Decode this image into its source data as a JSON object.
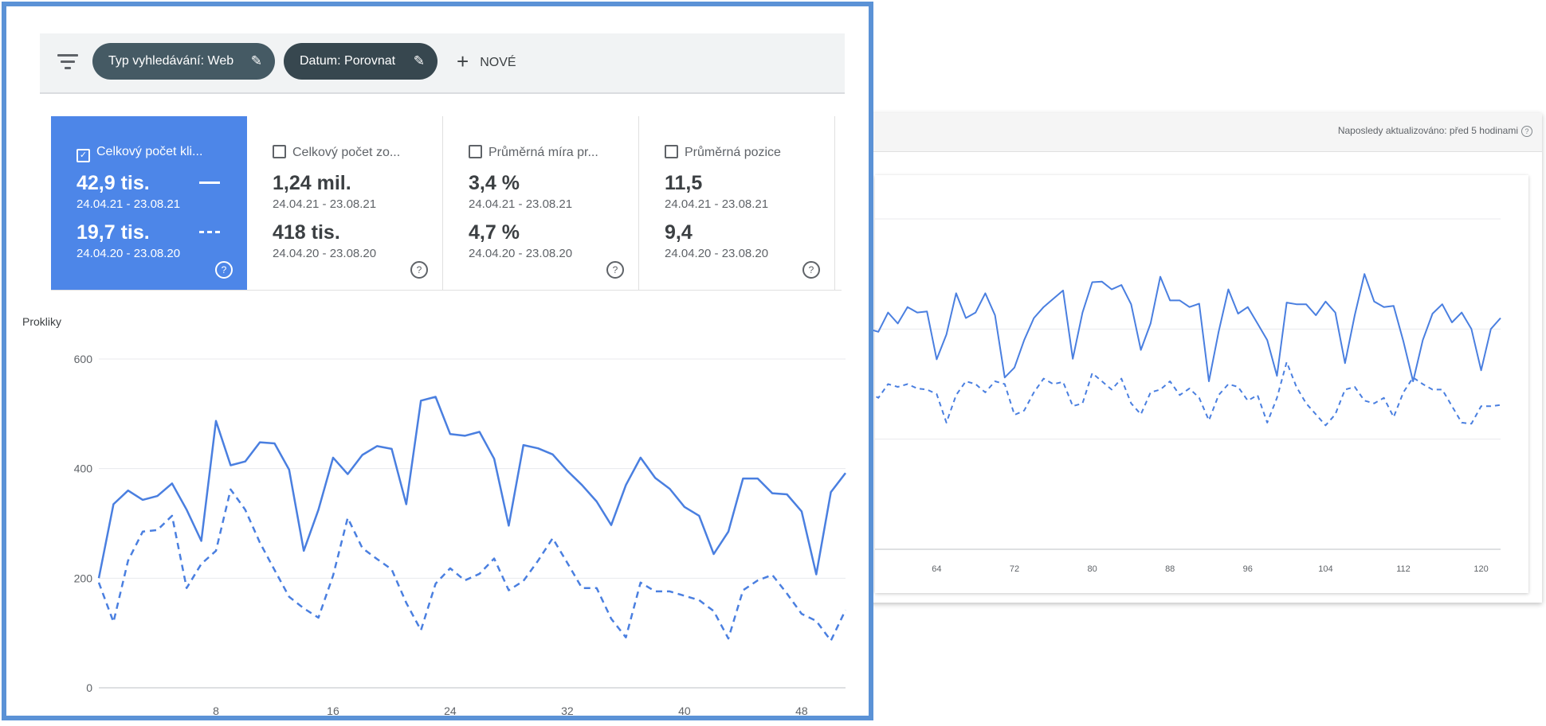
{
  "background_panel": {
    "last_updated": "Naposledy aktualizováno: před 5 hodinami",
    "help_glyph": "?"
  },
  "toolbar": {
    "filter_icon": "filter-list-icon",
    "chips": [
      {
        "label": "Typ vyhledávání: Web",
        "icon": "pencil-icon"
      },
      {
        "label": "Datum: Porovnat",
        "icon": "pencil-icon"
      }
    ],
    "add_label": "NOVÉ"
  },
  "metrics": [
    {
      "title": "Celkový počet kli...",
      "checked": true,
      "value_current": "42,9 tis.",
      "range_current": "24.04.21 - 23.08.21",
      "value_previous": "19,7 tis.",
      "range_previous": "24.04.20 - 23.08.20",
      "help": "?"
    },
    {
      "title": "Celkový počet zo...",
      "checked": false,
      "value_current": "1,24 mil.",
      "range_current": "24.04.21 - 23.08.21",
      "value_previous": "418 tis.",
      "range_previous": "24.04.20 - 23.08.20",
      "help": "?"
    },
    {
      "title": "Průměrná míra pr...",
      "checked": false,
      "value_current": "3,4 %",
      "range_current": "24.04.21 - 23.08.21",
      "value_previous": "4,7 %",
      "range_previous": "24.04.20 - 23.08.20",
      "help": "?"
    },
    {
      "title": "Průměrná pozice",
      "checked": false,
      "value_current": "11,5",
      "range_current": "24.04.21 - 23.08.21",
      "value_previous": "9,4",
      "range_previous": "24.04.20 - 23.08.20",
      "help": "?"
    }
  ],
  "colors": {
    "accent": "#4d86e8",
    "line": "#4a7fe0",
    "frame": "#5b92d6"
  },
  "chart_data": [
    {
      "type": "line",
      "ylabel": "Prokliky",
      "ylim": [
        0,
        600
      ],
      "yticks": [
        0,
        200,
        400,
        600
      ],
      "xlim": [
        0,
        51
      ],
      "xticks": [
        8,
        16,
        24,
        32,
        40,
        48
      ],
      "grid": true,
      "series": [
        {
          "style": "solid",
          "x": [
            0,
            1,
            2,
            3,
            4,
            5,
            6,
            7,
            8,
            9,
            10,
            11,
            12,
            13,
            14,
            15,
            16,
            17,
            18,
            19,
            20,
            21,
            22,
            23,
            24,
            25,
            26,
            27,
            28,
            29,
            30,
            31,
            32,
            33,
            34,
            35,
            36,
            37,
            38,
            39,
            40,
            41,
            42,
            43,
            44,
            45,
            46,
            47,
            48,
            49,
            50,
            51
          ],
          "values": [
            200,
            335,
            360,
            343,
            350,
            373,
            325,
            268,
            487,
            406,
            413,
            448,
            446,
            398,
            250,
            325,
            420,
            390,
            425,
            441,
            436,
            335,
            524,
            531,
            463,
            460,
            467,
            418,
            296,
            443,
            437,
            426,
            396,
            370,
            340,
            297,
            370,
            420,
            383,
            363,
            330,
            314,
            244,
            285,
            382,
            382,
            355,
            353,
            322,
            207,
            357,
            392
          ]
        },
        {
          "style": "dashed",
          "x": [
            0,
            1,
            2,
            3,
            4,
            5,
            6,
            7,
            8,
            9,
            10,
            11,
            12,
            13,
            14,
            15,
            16,
            17,
            18,
            19,
            20,
            21,
            22,
            23,
            24,
            25,
            26,
            27,
            28,
            29,
            30,
            31,
            32,
            33,
            34,
            35,
            36,
            37,
            38,
            39,
            40,
            41,
            42,
            43,
            44,
            45,
            46,
            47,
            48,
            49,
            50,
            51
          ],
          "values": [
            192,
            120,
            232,
            285,
            288,
            314,
            182,
            226,
            250,
            362,
            325,
            265,
            215,
            166,
            145,
            128,
            205,
            310,
            255,
            235,
            216,
            155,
            105,
            190,
            218,
            196,
            208,
            236,
            178,
            195,
            232,
            273,
            228,
            182,
            182,
            126,
            92,
            192,
            176,
            176,
            168,
            160,
            140,
            90,
            178,
            196,
            206,
            172,
            135,
            122,
            86,
            142
          ]
        }
      ]
    },
    {
      "type": "line",
      "xlim": [
        57,
        122
      ],
      "xticks": [
        64,
        72,
        80,
        88,
        96,
        104,
        112,
        120
      ],
      "grid": true,
      "series": [
        {
          "style": "solid",
          "x": [
            57,
            58,
            59,
            60,
            61,
            62,
            63,
            64,
            65,
            66,
            67,
            68,
            69,
            70,
            71,
            72,
            73,
            74,
            75,
            76,
            77,
            78,
            79,
            80,
            81,
            82,
            83,
            84,
            85,
            86,
            87,
            88,
            89,
            90,
            91,
            92,
            93,
            94,
            95,
            96,
            97,
            98,
            99,
            100,
            101,
            102,
            103,
            104,
            105,
            106,
            107,
            108,
            109,
            110,
            111,
            112,
            113,
            114,
            115,
            116,
            117,
            118,
            119,
            120,
            121,
            122
          ],
          "values": [
            400,
            395,
            430,
            410,
            440,
            430,
            432,
            345,
            390,
            465,
            420,
            430,
            465,
            425,
            312,
            330,
            380,
            420,
            440,
            455,
            470,
            346,
            430,
            485,
            486,
            472,
            480,
            445,
            362,
            410,
            495,
            452,
            452,
            440,
            446,
            305,
            395,
            472,
            428,
            440,
            410,
            380,
            315,
            448,
            445,
            445,
            425,
            450,
            430,
            338,
            425,
            500,
            450,
            440,
            442,
            378,
            305,
            380,
            428,
            445,
            412,
            430,
            400,
            325,
            400,
            420
          ]
        },
        {
          "style": "dashed",
          "x": [
            57,
            58,
            59,
            60,
            61,
            62,
            63,
            64,
            65,
            66,
            67,
            68,
            69,
            70,
            71,
            72,
            73,
            74,
            75,
            76,
            77,
            78,
            79,
            80,
            81,
            82,
            83,
            84,
            85,
            86,
            87,
            88,
            89,
            90,
            91,
            92,
            93,
            94,
            95,
            96,
            97,
            98,
            99,
            100,
            101,
            102,
            103,
            104,
            105,
            106,
            107,
            108,
            109,
            110,
            111,
            112,
            113,
            114,
            115,
            116,
            117,
            118,
            119,
            120,
            121,
            122
          ],
          "values": [
            285,
            275,
            300,
            295,
            300,
            292,
            290,
            282,
            230,
            280,
            305,
            300,
            285,
            305,
            300,
            244,
            252,
            285,
            310,
            300,
            304,
            260,
            265,
            320,
            305,
            290,
            310,
            265,
            245,
            285,
            290,
            305,
            280,
            292,
            275,
            234,
            280,
            300,
            295,
            270,
            280,
            230,
            275,
            340,
            295,
            265,
            245,
            225,
            245,
            290,
            295,
            270,
            265,
            275,
            240,
            285,
            312,
            300,
            290,
            290,
            260,
            230,
            228,
            260,
            260,
            262
          ]
        }
      ]
    }
  ]
}
